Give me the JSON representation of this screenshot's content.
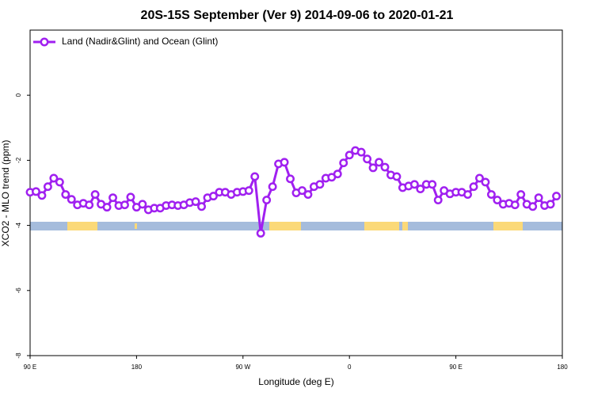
{
  "chart_data": {
    "type": "line",
    "title": "20S-15S September (Ver 9)   2014-09-06 to 2020-01-21",
    "x_label": "Longitude (deg E)",
    "y_label": "XCO2 - MLO trend (ppm)",
    "x": [
      90,
      95,
      100,
      105,
      110,
      115,
      120,
      125,
      130,
      135,
      140,
      145,
      150,
      155,
      160,
      165,
      170,
      175,
      180,
      185,
      190,
      195,
      200,
      205,
      210,
      215,
      220,
      225,
      230,
      235,
      240,
      245,
      250,
      255,
      260,
      265,
      270,
      275,
      280,
      285,
      290,
      295,
      300,
      305,
      310,
      315,
      320,
      325,
      330,
      335,
      340,
      345,
      350,
      355,
      360,
      365,
      370,
      375,
      380,
      385,
      390,
      395,
      400,
      405,
      410,
      415,
      420,
      425,
      430,
      435,
      440,
      445,
      450,
      455,
      460,
      465,
      470,
      475,
      480,
      485,
      490,
      495,
      500,
      505,
      510,
      515,
      520,
      525,
      530,
      535
    ],
    "series": [
      {
        "name": "Land (Nadir&Glint) and Ocean (Glint)",
        "color": "#a020f0",
        "values": [
          -2.98,
          -2.96,
          -3.08,
          -2.81,
          -2.55,
          -2.67,
          -3.05,
          -3.2,
          -3.37,
          -3.32,
          -3.37,
          -3.05,
          -3.35,
          -3.44,
          -3.15,
          -3.39,
          -3.37,
          -3.13,
          -3.44,
          -3.35,
          -3.52,
          -3.47,
          -3.47,
          -3.39,
          -3.37,
          -3.39,
          -3.37,
          -3.3,
          -3.27,
          -3.42,
          -3.15,
          -3.1,
          -2.98,
          -2.98,
          -3.05,
          -2.98,
          -2.96,
          -2.93,
          -2.5,
          -4.24,
          -3.22,
          -2.81,
          -2.11,
          -2.06,
          -2.57,
          -3.0,
          -2.93,
          -3.05,
          -2.81,
          -2.74,
          -2.55,
          -2.52,
          -2.42,
          -2.08,
          -1.84,
          -1.7,
          -1.75,
          -1.96,
          -2.23,
          -2.06,
          -2.21,
          -2.45,
          -2.5,
          -2.84,
          -2.79,
          -2.74,
          -2.88,
          -2.74,
          -2.74,
          -3.22,
          -2.93,
          -3.03,
          -2.98,
          -2.98,
          -3.05,
          -2.81,
          -2.55,
          -2.67,
          -3.05,
          -3.22,
          -3.35,
          -3.32,
          -3.37,
          -3.05,
          -3.35,
          -3.42,
          -3.15,
          -3.39,
          -3.35,
          -3.1
        ]
      }
    ],
    "xlim": [
      90,
      540
    ],
    "xticks": [
      {
        "value": 90,
        "label": "90 E"
      },
      180,
      {
        "value": 270,
        "label": "90 W"
      },
      0,
      {
        "value": 450,
        "label": "90 E"
      },
      {
        "value": 540,
        "label": "180"
      }
    ],
    "ylim": [
      -8,
      2
    ],
    "yticks": [
      0,
      -2,
      -4,
      -6,
      -8
    ],
    "legend": "top-left"
  }
}
